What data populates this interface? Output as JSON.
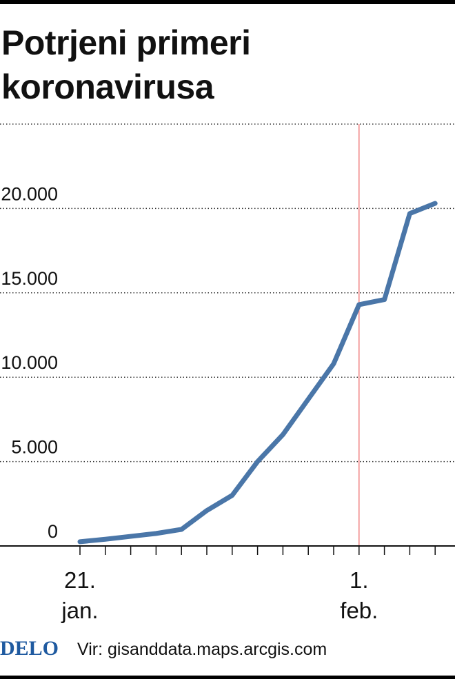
{
  "chart_data": {
    "type": "line",
    "title": "Potrjeni primeri koronavirusa",
    "categories": [
      "21. jan.",
      null,
      null,
      null,
      null,
      null,
      null,
      null,
      null,
      null,
      null,
      "1. feb.",
      null,
      null,
      null
    ],
    "values": [
      250,
      400,
      570,
      740,
      980,
      2100,
      3000,
      5000,
      6600,
      8700,
      10800,
      14300,
      14600,
      19700,
      20300
    ],
    "color": "#4a76a8",
    "highlight_color": "#f08080",
    "ylim": [
      0,
      25000
    ],
    "yticks": [
      {
        "value": 0,
        "label": "0"
      },
      {
        "value": 5000,
        "label": "5.000"
      },
      {
        "value": 10000,
        "label": "10.000"
      },
      {
        "value": 15000,
        "label": "15.000"
      },
      {
        "value": 20000,
        "label": "20.000"
      }
    ],
    "grid": true,
    "logo": "DELO",
    "source": "Vir: gisanddata.maps.arcgis.com"
  }
}
